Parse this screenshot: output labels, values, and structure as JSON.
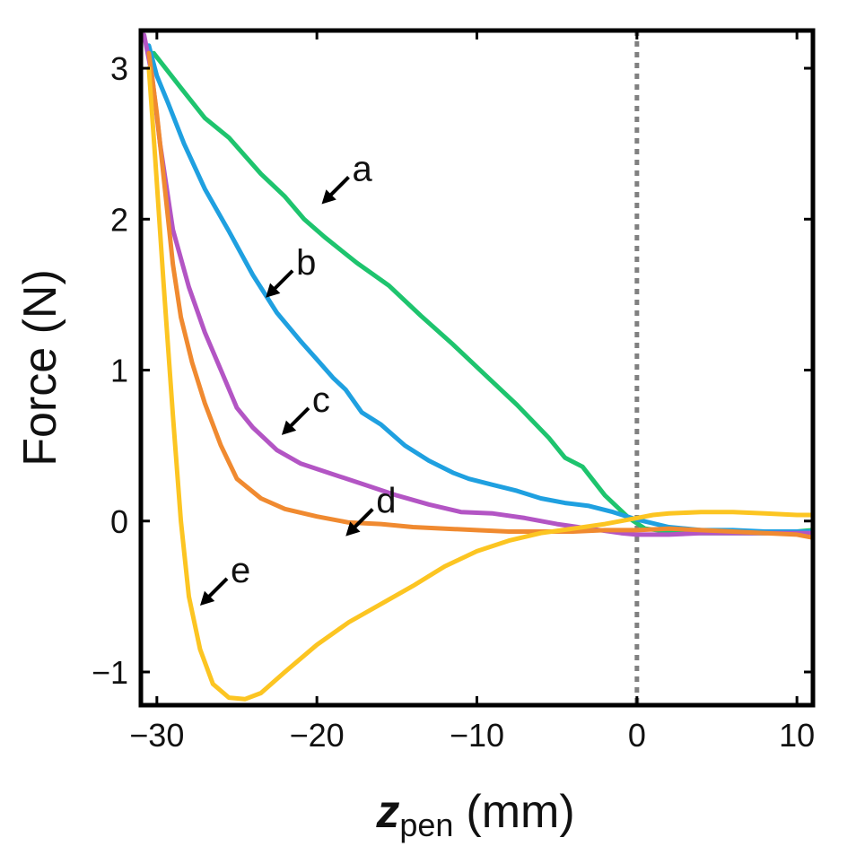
{
  "chart_data": {
    "type": "line",
    "title": "",
    "ylabel": "Force (N)",
    "xlabel_main": "z",
    "xlabel_sub": "pen",
    "xlabel_unit": "(mm)",
    "xlim": [
      -31,
      11
    ],
    "ylim": [
      -1.22,
      3.25
    ],
    "xticks": [
      -30,
      -20,
      -10,
      0,
      10
    ],
    "xtick_labels": [
      "−30",
      "−20",
      "−10",
      "0",
      "10"
    ],
    "yticks": [
      -1,
      0,
      1,
      2,
      3
    ],
    "ytick_labels": [
      "−1",
      "0",
      "1",
      "2",
      "3"
    ],
    "reference_line_x": 0,
    "grid": false,
    "series": [
      {
        "name": "a",
        "color": "#1ec46e",
        "x": [
          -30.2,
          -28.5,
          -27,
          -25.5,
          -23.5,
          -22,
          -20.8,
          -19.5,
          -17.5,
          -15.5,
          -13.5,
          -11.5,
          -9.5,
          -7.5,
          -5.5,
          -4.5,
          -3.4,
          -2,
          -0.5,
          0.5,
          2,
          4,
          6,
          8,
          10,
          11
        ],
        "y": [
          3.1,
          2.87,
          2.67,
          2.54,
          2.3,
          2.15,
          2.0,
          1.88,
          1.71,
          1.56,
          1.36,
          1.17,
          0.97,
          0.77,
          0.55,
          0.42,
          0.36,
          0.17,
          0.02,
          -0.05,
          -0.07,
          -0.08,
          -0.08,
          -0.08,
          -0.07,
          -0.06
        ]
      },
      {
        "name": "b",
        "color": "#1fa0e0",
        "x": [
          -30.5,
          -30,
          -29.3,
          -28.3,
          -27,
          -25.5,
          -24,
          -22.5,
          -21,
          -20,
          -19,
          -18.2,
          -17.2,
          -16,
          -14.5,
          -13,
          -11.5,
          -10.5,
          -9,
          -7.5,
          -6,
          -4.5,
          -3,
          -1.5,
          0,
          2,
          4,
          6,
          8,
          10,
          11
        ],
        "y": [
          3.15,
          2.95,
          2.77,
          2.5,
          2.2,
          1.92,
          1.63,
          1.38,
          1.19,
          1.07,
          0.95,
          0.87,
          0.72,
          0.64,
          0.5,
          0.4,
          0.32,
          0.28,
          0.24,
          0.2,
          0.15,
          0.12,
          0.1,
          0.06,
          0.01,
          -0.04,
          -0.06,
          -0.06,
          -0.07,
          -0.07,
          -0.07
        ]
      },
      {
        "name": "c",
        "color": "#b355c4",
        "x": [
          -30.8,
          -30.3,
          -29.8,
          -29,
          -28,
          -27,
          -26,
          -25,
          -24,
          -22.5,
          -21,
          -19,
          -17,
          -15,
          -13,
          -11,
          -9,
          -7,
          -5,
          -3,
          -1,
          0,
          2,
          4,
          6,
          8,
          10,
          11
        ],
        "y": [
          3.22,
          2.95,
          2.5,
          1.93,
          1.55,
          1.25,
          1.0,
          0.75,
          0.62,
          0.47,
          0.38,
          0.31,
          0.24,
          0.17,
          0.11,
          0.06,
          0.05,
          0.02,
          -0.02,
          -0.05,
          -0.08,
          -0.09,
          -0.09,
          -0.08,
          -0.08,
          -0.08,
          -0.08,
          -0.08
        ]
      },
      {
        "name": "d",
        "color": "#f08a30",
        "x": [
          -30.5,
          -30,
          -29.5,
          -29,
          -28.5,
          -27.8,
          -27,
          -26,
          -25,
          -23.5,
          -22,
          -20,
          -18,
          -16,
          -14,
          -12,
          -10,
          -8,
          -6,
          -4,
          -2,
          0,
          2,
          4,
          6,
          8,
          10,
          11
        ],
        "y": [
          3.1,
          2.7,
          2.2,
          1.7,
          1.35,
          1.05,
          0.78,
          0.5,
          0.28,
          0.15,
          0.08,
          0.03,
          -0.01,
          -0.02,
          -0.04,
          -0.05,
          -0.06,
          -0.07,
          -0.07,
          -0.07,
          -0.06,
          -0.06,
          -0.05,
          -0.06,
          -0.07,
          -0.08,
          -0.09,
          -0.11
        ]
      },
      {
        "name": "e",
        "color": "#fcc522",
        "x": [
          -30.5,
          -30.1,
          -29.6,
          -29,
          -28.5,
          -28,
          -27.3,
          -26.5,
          -25.5,
          -24.5,
          -23.5,
          -22,
          -20,
          -18,
          -16,
          -14,
          -12,
          -10,
          -8,
          -6,
          -4,
          -2,
          0,
          1,
          2,
          4,
          6,
          8,
          10,
          11
        ],
        "y": [
          3.0,
          2.4,
          1.6,
          0.7,
          0.0,
          -0.5,
          -0.85,
          -1.08,
          -1.17,
          -1.18,
          -1.14,
          -1.0,
          -0.82,
          -0.67,
          -0.55,
          -0.43,
          -0.3,
          -0.2,
          -0.13,
          -0.08,
          -0.05,
          -0.02,
          0.02,
          0.04,
          0.05,
          0.06,
          0.06,
          0.05,
          0.04,
          0.04
        ]
      }
    ],
    "annotations": [
      {
        "label": "a",
        "series": "a",
        "tip": [
          -19.7,
          2.1
        ]
      },
      {
        "label": "b",
        "series": "b",
        "tip": [
          -23.2,
          1.48
        ]
      },
      {
        "label": "c",
        "series": "c",
        "tip": [
          -22.2,
          0.57
        ]
      },
      {
        "label": "d",
        "series": "d",
        "tip": [
          -18.2,
          -0.1
        ]
      },
      {
        "label": "e",
        "series": "e",
        "tip": [
          -27.3,
          -0.56
        ]
      }
    ]
  }
}
